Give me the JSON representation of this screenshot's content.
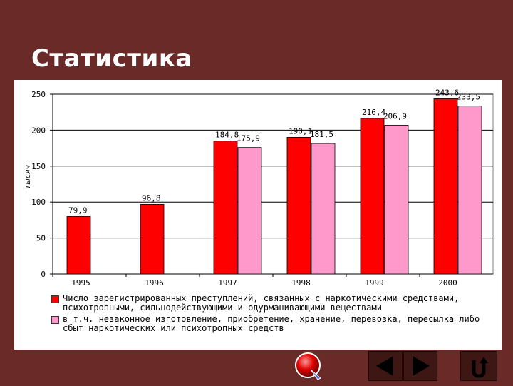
{
  "slide": {
    "title": "Статистика"
  },
  "chart_data": {
    "type": "bar",
    "ylabel": "тысяч",
    "ylim": [
      0,
      250
    ],
    "yticks": [
      0,
      50,
      100,
      150,
      200,
      250
    ],
    "grid": true,
    "categories": [
      "1995",
      "1996",
      "1997",
      "1998",
      "1999",
      "2000"
    ],
    "series": [
      {
        "name": "Число зарегистрированных преступлений, связанных с наркотическими средствами, психотропными, сильнодействующими и одурманивающими веществами",
        "color": "#ff0000",
        "values": [
          79.9,
          96.8,
          184.8,
          190.1,
          216.4,
          243.6
        ],
        "labels": [
          "79,9",
          "96,8",
          "184,8",
          "190,1",
          "216,4",
          "243,6"
        ]
      },
      {
        "name": "в т.ч. незаконное изготовление, приобретение, хранение, перевозка, пересылка либо сбыт наркотических или психотропных средств",
        "color": "#ff99cc",
        "values": [
          null,
          null,
          175.9,
          181.5,
          206.9,
          233.5
        ],
        "labels": [
          "",
          "",
          "175,9",
          "181,5",
          "206,9",
          "233,5"
        ]
      }
    ],
    "legend": "bottom"
  },
  "icons": {
    "prev": "triangle-left-icon",
    "next": "triangle-right-icon",
    "back": "return-arrow-icon",
    "badge": "red-sphere-icon"
  }
}
